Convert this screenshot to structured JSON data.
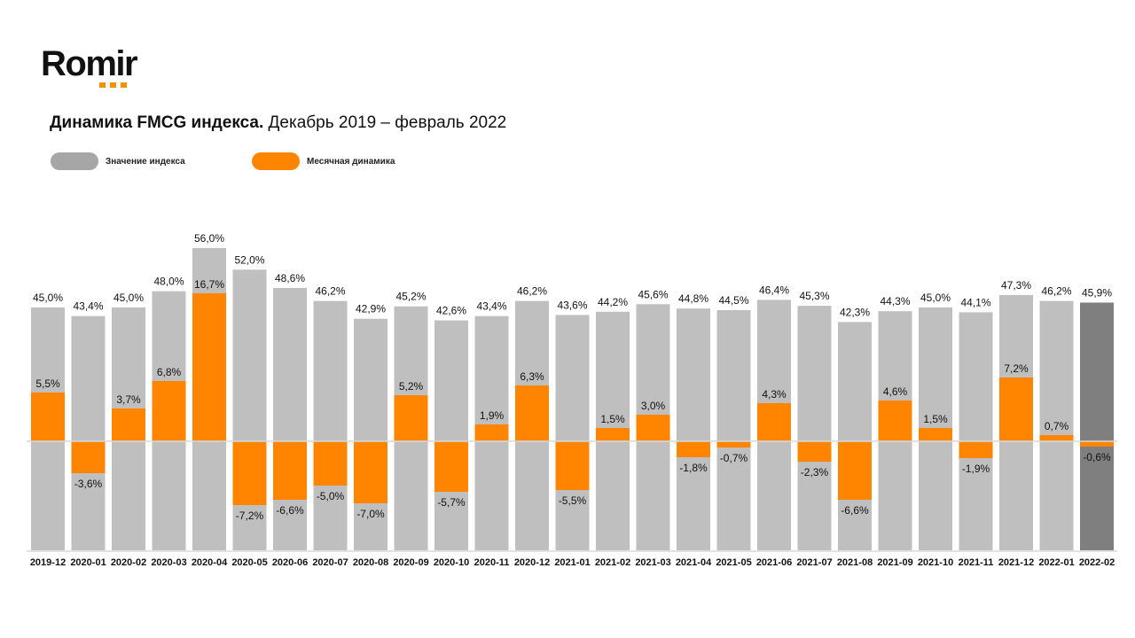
{
  "logo": {
    "text": "Romir"
  },
  "title": {
    "bold": "Динамика FMCG индекса.",
    "regular": "Декабрь 2019 – февраль 2022"
  },
  "legend": [
    {
      "label": "Значение индекса",
      "color": "#a6a6a6"
    },
    {
      "label": "Месячная динамика",
      "color": "#ff8400"
    }
  ],
  "chart_data": {
    "type": "bar",
    "title": "Динамика FMCG индекса. Декабрь 2019 – февраль 2022",
    "categories": [
      "2019-12",
      "2020-01",
      "2020-02",
      "2020-03",
      "2020-04",
      "2020-05",
      "2020-06",
      "2020-07",
      "2020-08",
      "2020-09",
      "2020-10",
      "2020-11",
      "2020-12",
      "2021-01",
      "2021-02",
      "2021-03",
      "2021-04",
      "2021-05",
      "2021-06",
      "2021-07",
      "2021-08",
      "2021-09",
      "2021-10",
      "2021-11",
      "2021-12",
      "2022-01",
      "2022-02"
    ],
    "series": [
      {
        "name": "Значение индекса",
        "color": "#bfbfbf",
        "highlight_color": "#7f7f7f",
        "values": [
          45.0,
          43.4,
          45.0,
          48.0,
          56.0,
          52.0,
          48.6,
          46.2,
          42.9,
          45.2,
          42.6,
          43.4,
          46.2,
          43.6,
          44.2,
          45.6,
          44.8,
          44.5,
          46.4,
          45.3,
          42.3,
          44.3,
          45.0,
          44.1,
          47.3,
          46.2,
          45.9
        ],
        "labels": [
          "45,0%",
          "43,4%",
          "45,0%",
          "48,0%",
          "56,0%",
          "52,0%",
          "48,6%",
          "46,2%",
          "42,9%",
          "45,2%",
          "42,6%",
          "43,4%",
          "46,2%",
          "43,6%",
          "44,2%",
          "45,6%",
          "44,8%",
          "44,5%",
          "46,4%",
          "45,3%",
          "42,3%",
          "44,3%",
          "45,0%",
          "44,1%",
          "47,3%",
          "46,2%",
          "45,9%"
        ]
      },
      {
        "name": "Месячная динамика",
        "color": "#ff8400",
        "values": [
          5.5,
          -3.6,
          3.7,
          6.8,
          16.7,
          -7.2,
          -6.6,
          -5.0,
          -7.0,
          5.2,
          -5.7,
          1.9,
          6.3,
          -5.5,
          1.5,
          3.0,
          -1.8,
          -0.7,
          4.3,
          -2.3,
          -6.6,
          4.6,
          1.5,
          -1.9,
          7.2,
          0.7,
          -0.6
        ],
        "labels": [
          "5,5%",
          "-3,6%",
          "3,7%",
          "6,8%",
          "16,7%",
          "-7,2%",
          "-6,6%",
          "-5,0%",
          "-7,0%",
          "5,2%",
          "-5,7%",
          "1,9%",
          "6,3%",
          "-5,5%",
          "1,5%",
          "3,0%",
          "-1,8%",
          "-0,7%",
          "4,3%",
          "-2,3%",
          "-6,6%",
          "4,6%",
          "1,5%",
          "-1,9%",
          "7,2%",
          "0,7%",
          "-0,6%"
        ]
      }
    ],
    "xlabel": "",
    "ylabel": "",
    "grid": false,
    "legend_position": "top-left"
  }
}
